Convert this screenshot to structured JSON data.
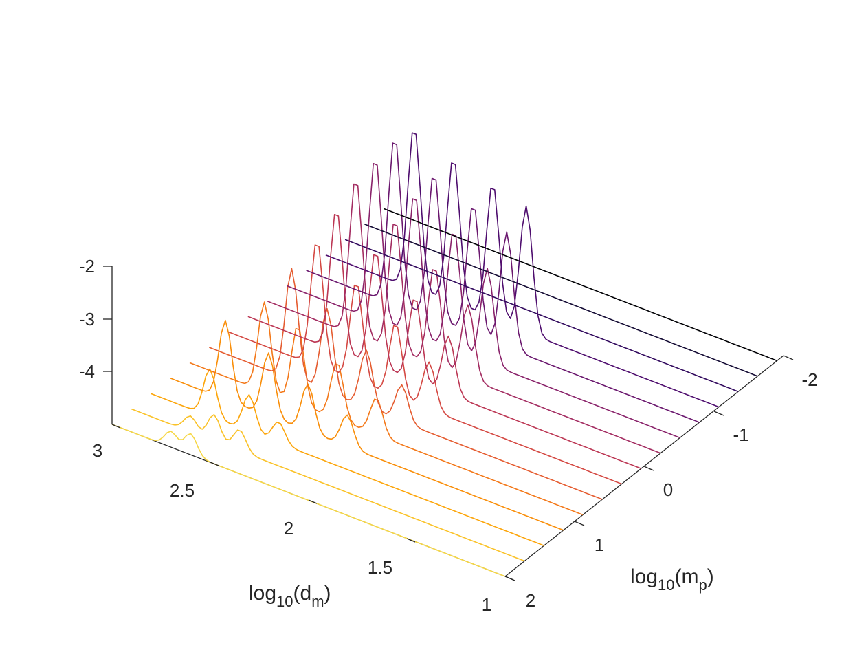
{
  "chart_data": {
    "type": "waterfall",
    "xlabel_base": "log",
    "xlabel_sub": "10",
    "xlabel_var": "(d",
    "xlabel_var_sub": "m",
    "xlabel_close": ")",
    "ylabel_base": "log",
    "ylabel_sub": "10",
    "ylabel_var": "(m",
    "ylabel_var_sub": "p",
    "ylabel_close": ")",
    "x_axis": {
      "name": "log10(d_m)",
      "range": [
        1,
        3
      ],
      "ticks": [
        "1",
        "1.5",
        "2",
        "2.5",
        "3"
      ]
    },
    "y_axis": {
      "name": "log10(m_p)",
      "range": [
        -2.3,
        2
      ],
      "ticks": [
        "2",
        "1",
        "0",
        "-1",
        "-2"
      ]
    },
    "z_axis": {
      "range": [
        -5,
        -2
      ],
      "ticks": [
        "-2",
        "-3",
        "-4"
      ]
    },
    "colormap": "inferno",
    "colors": [
      "#f6d746",
      "#fac228",
      "#fca50a",
      "#f98e09",
      "#f37819",
      "#e55c30",
      "#d44842",
      "#bc3754",
      "#a32c61",
      "#89226a",
      "#6a176e",
      "#4e0d6e",
      "#320a5e",
      "#140b34",
      "#000004"
    ],
    "series": [
      {
        "m": 2.0,
        "peaks": [
          {
            "d": 2.7,
            "z": -4.7
          },
          {
            "d": 2.6,
            "z": -4.6
          }
        ]
      },
      {
        "m": 1.7,
        "peaks": [
          {
            "d": 2.7,
            "z": -4.7
          },
          {
            "d": 2.58,
            "z": -4.5
          },
          {
            "d": 2.45,
            "z": -4.6
          }
        ]
      },
      {
        "m": 1.4,
        "peaks": [
          {
            "d": 2.7,
            "z": -4.1
          },
          {
            "d": 2.5,
            "z": -4.3
          },
          {
            "d": 2.35,
            "z": -4.6
          }
        ]
      },
      {
        "m": 1.1,
        "peaks": [
          {
            "d": 2.72,
            "z": -3.5
          },
          {
            "d": 2.5,
            "z": -3.8
          },
          {
            "d": 2.3,
            "z": -4.1
          },
          {
            "d": 2.1,
            "z": -4.4
          }
        ]
      },
      {
        "m": 0.8,
        "peaks": [
          {
            "d": 2.62,
            "z": -3.3
          },
          {
            "d": 2.45,
            "z": -3.5
          },
          {
            "d": 2.25,
            "z": -3.9
          },
          {
            "d": 2.05,
            "z": -4.3
          }
        ]
      },
      {
        "m": 0.5,
        "peaks": [
          {
            "d": 2.58,
            "z": -2.9
          },
          {
            "d": 2.4,
            "z": -3.4
          },
          {
            "d": 2.2,
            "z": -3.9
          },
          {
            "d": 2.02,
            "z": -4.3
          }
        ]
      },
      {
        "m": 0.2,
        "peaks": [
          {
            "d": 2.55,
            "z": -2.6
          },
          {
            "d": 2.35,
            "z": -3.1
          },
          {
            "d": 2.15,
            "z": -3.6
          },
          {
            "d": 1.98,
            "z": -4.1
          }
        ]
      },
      {
        "m": -0.1,
        "peaks": [
          {
            "d": 2.55,
            "z": -2.3
          },
          {
            "d": 2.35,
            "z": -2.8
          },
          {
            "d": 2.15,
            "z": -3.4
          },
          {
            "d": 1.98,
            "z": -3.9
          }
        ]
      },
      {
        "m": -0.4,
        "peaks": [
          {
            "d": 2.55,
            "z": -2.0
          },
          {
            "d": 2.35,
            "z": -2.5
          },
          {
            "d": 2.15,
            "z": -3.1
          },
          {
            "d": 1.98,
            "z": -3.6
          }
        ]
      },
      {
        "m": -0.7,
        "peaks": [
          {
            "d": 2.55,
            "z": -1.9
          },
          {
            "d": 2.35,
            "z": -2.3
          },
          {
            "d": 2.15,
            "z": -2.7
          },
          {
            "d": 1.98,
            "z": -3.2
          }
        ]
      },
      {
        "m": -1.0,
        "peaks": [
          {
            "d": 2.55,
            "z": -1.8
          },
          {
            "d": 2.35,
            "z": -2.2
          },
          {
            "d": 2.15,
            "z": -2.5
          },
          {
            "d": 1.98,
            "z": -2.8
          }
        ]
      },
      {
        "m": -1.3,
        "peaks": [
          {
            "d": 2.55,
            "z": -1.9
          },
          {
            "d": 2.35,
            "z": -2.2
          },
          {
            "d": 2.15,
            "z": -2.4
          },
          {
            "d": 1.98,
            "z": -2.6
          }
        ]
      },
      {
        "m": -1.6,
        "peaks": []
      },
      {
        "m": -1.9,
        "peaks": []
      },
      {
        "m": -2.2,
        "peaks": []
      }
    ],
    "grid": false
  }
}
